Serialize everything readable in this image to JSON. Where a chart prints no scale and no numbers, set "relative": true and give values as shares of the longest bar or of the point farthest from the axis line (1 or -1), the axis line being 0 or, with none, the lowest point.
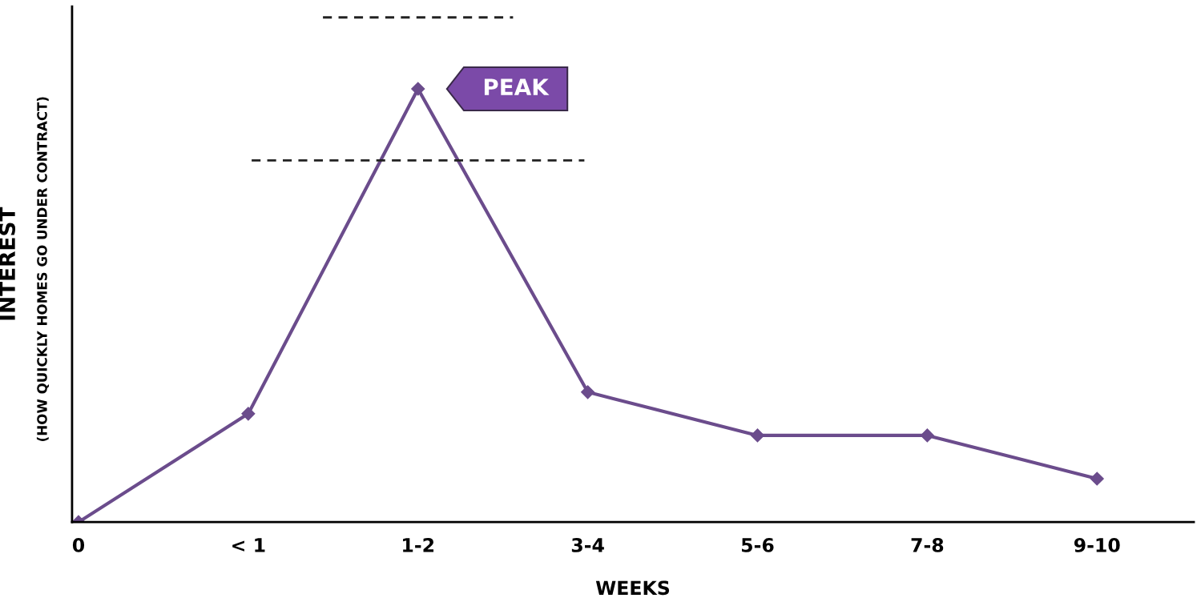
{
  "chart_data": {
    "type": "line",
    "relative": true,
    "xlabel": "WEEKS",
    "ylabel": "INTEREST",
    "categories": [
      "0",
      "< 1",
      "1-2",
      "3-4",
      "5-6",
      "7-8",
      "9-10"
    ],
    "series": [
      {
        "color": "#6b4c8c",
        "values": [
          0,
          0.25,
          1,
          0.3,
          0.2,
          0.2,
          0.1
        ]
      }
    ],
    "marker": "diamond",
    "line_style": "solid",
    "grid": false,
    "legend": false,
    "annotations": [
      "(HOW QUICKLY HOMES GO UNDER CONTRACT)",
      {
        "text": "PEAK",
        "x": "1-2",
        "y": 1
      }
    ]
  }
}
